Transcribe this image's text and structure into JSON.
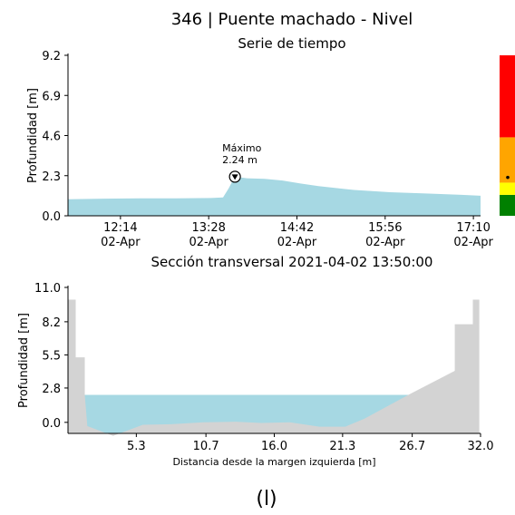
{
  "figure": {
    "title": "346 | Puente machado  - Nivel",
    "caption": "(l)"
  },
  "chart_data": [
    {
      "type": "area",
      "subtitle": "Serie de tiempo",
      "ylabel": "Profundidad [m]",
      "xlabel": "",
      "ylim": [
        0,
        9.2
      ],
      "yticks": [
        0.0,
        2.3,
        4.6,
        6.9,
        9.2
      ],
      "ytick_labels": [
        "0.0",
        "2.3",
        "4.6",
        "6.9",
        "9.2"
      ],
      "xlim": [
        "11:30",
        "17:16"
      ],
      "xticks": [
        "12:14",
        "13:28",
        "14:42",
        "15:56",
        "17:10"
      ],
      "xtick_labels": [
        [
          "12:14",
          "02-Apr"
        ],
        [
          "13:28",
          "02-Apr"
        ],
        [
          "14:42",
          "02-Apr"
        ],
        [
          "15:56",
          "02-Apr"
        ],
        [
          "17:10",
          "02-Apr"
        ]
      ],
      "fill_color": "#a6d8e3",
      "series": [
        {
          "x": [
            "11:30",
            "12:00",
            "12:30",
            "13:00",
            "13:30",
            "13:40",
            "13:45",
            "13:48",
            "13:50",
            "13:55",
            "14:00",
            "14:15",
            "14:30",
            "14:45",
            "15:00",
            "15:30",
            "16:00",
            "16:30",
            "17:00",
            "17:16"
          ],
          "values": [
            0.95,
            0.98,
            1.0,
            1.0,
            1.02,
            1.05,
            1.6,
            2.0,
            2.24,
            2.2,
            2.15,
            2.12,
            2.02,
            1.85,
            1.7,
            1.48,
            1.35,
            1.28,
            1.2,
            1.15
          ]
        }
      ],
      "annotation": {
        "label_line1": "Máximo",
        "label_line2": "2.24 m",
        "x": "13:50",
        "y": 2.24
      },
      "level_bands": [
        {
          "from": 0.0,
          "to": 1.2,
          "color": "#008000"
        },
        {
          "from": 1.2,
          "to": 1.9,
          "color": "#ffff00"
        },
        {
          "from": 1.9,
          "to": 4.5,
          "color": "#ffa500"
        },
        {
          "from": 4.5,
          "to": 9.2,
          "color": "#ff0000"
        }
      ],
      "current_level": 2.2
    },
    {
      "type": "area",
      "title": "Sección transversal 2021-04-02 13:50:00",
      "xlabel": "Distancia desde la margen izquierda [m]",
      "ylabel": "Profundidad [m]",
      "xlim": [
        0,
        32.0
      ],
      "ylim": [
        -0.9,
        11.0
      ],
      "xticks": [
        5.3,
        10.7,
        16.0,
        21.3,
        26.7,
        32.0
      ],
      "xtick_labels": [
        "5.3",
        "10.7",
        "16.0",
        "21.3",
        "26.7",
        "32.0"
      ],
      "yticks": [
        0.0,
        2.8,
        5.5,
        8.2,
        11.0
      ],
      "ytick_labels": [
        "0.0",
        "2.8",
        "5.5",
        "8.2",
        "11.0"
      ],
      "water_level": 2.24,
      "water_color": "#a6d8e3",
      "ground_color": "#d3d3d3",
      "bed": {
        "x": [
          0.0,
          0.0,
          0.6,
          0.6,
          1.3,
          1.3,
          1.5,
          3.5,
          5.8,
          8.0,
          10.5,
          13.0,
          15.0,
          17.2,
          19.5,
          21.5,
          23.0,
          26.5,
          30.0,
          30.0,
          31.4,
          31.4,
          31.9,
          31.9,
          32.0
        ],
        "y": [
          -0.9,
          10.0,
          10.0,
          5.3,
          5.3,
          2.24,
          -0.3,
          -1.1,
          -0.2,
          -0.15,
          0.0,
          0.05,
          -0.05,
          0.0,
          -0.35,
          -0.35,
          0.3,
          2.3,
          4.2,
          8.0,
          8.0,
          10.0,
          10.0,
          -0.9,
          -0.9
        ]
      }
    }
  ]
}
